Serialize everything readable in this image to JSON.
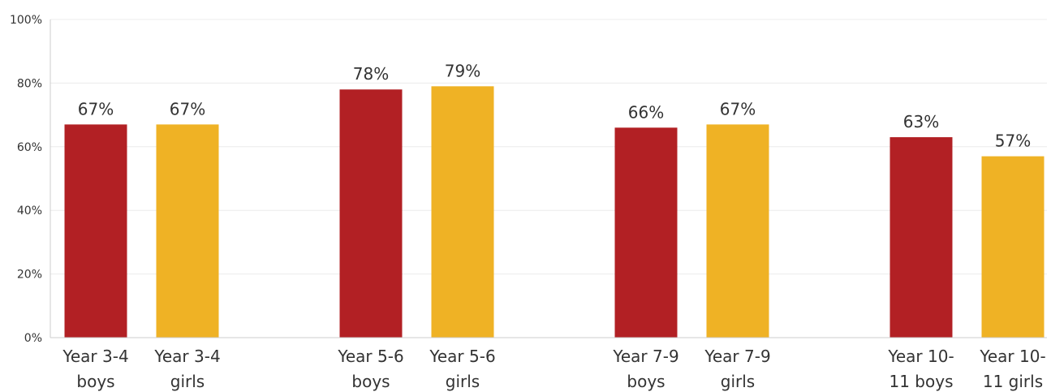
{
  "chart_data": {
    "type": "bar",
    "title": "",
    "xlabel": "",
    "ylabel": "",
    "ylim": [
      0,
      100
    ],
    "yticks": [
      0,
      20,
      40,
      60,
      80,
      100
    ],
    "ytick_labels": [
      "0%",
      "20%",
      "40%",
      "60%",
      "80%",
      "100%"
    ],
    "grid": true,
    "legend": "none",
    "categories": [
      "Year 3-4 boys",
      "Year 3-4 girls",
      "Year 5-6 boys",
      "Year 5-6 girls",
      "Year 7-9 boys",
      "Year 7-9 girls",
      "Year 10-11 boys",
      "Year 10-11 girls"
    ],
    "category_lines": [
      [
        "Year 3-4",
        "boys"
      ],
      [
        "Year 3-4",
        "girls"
      ],
      [
        "Year 5-6",
        "boys"
      ],
      [
        "Year 5-6",
        "girls"
      ],
      [
        "Year 7-9",
        "boys"
      ],
      [
        "Year 7-9",
        "girls"
      ],
      [
        "Year 10-",
        "11 boys"
      ],
      [
        "Year 10-",
        "11 girls"
      ]
    ],
    "values": [
      67,
      67,
      78,
      79,
      66,
      67,
      63,
      57
    ],
    "value_labels": [
      "67%",
      "67%",
      "78%",
      "79%",
      "66%",
      "67%",
      "63%",
      "57%"
    ],
    "colors": {
      "boys": "#b22024",
      "girls": "#efb225"
    },
    "bar_colors": [
      "boys",
      "girls",
      "boys",
      "girls",
      "boys",
      "girls",
      "boys",
      "girls"
    ]
  }
}
